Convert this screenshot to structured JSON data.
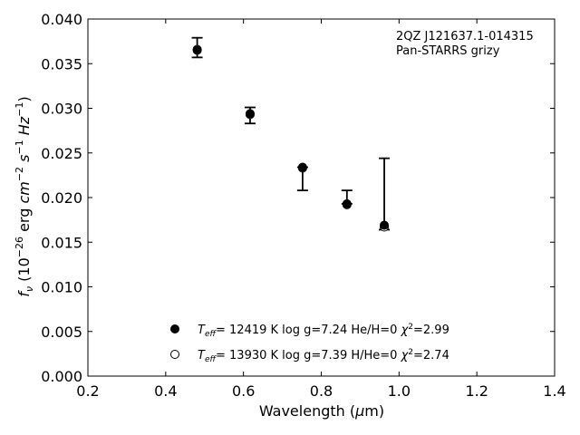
{
  "chart_data": {
    "type": "scatter",
    "xlabel": "Wavelength (μm)",
    "ylabel": "f_ν (10⁻²⁶ erg cm⁻² s⁻¹ Hz⁻¹)",
    "xlim": [
      0.2,
      1.4
    ],
    "ylim": [
      0.0,
      0.04
    ],
    "xticks": [
      "0.2",
      "0.4",
      "0.6",
      "0.8",
      "1.0",
      "1.2",
      "1.4"
    ],
    "yticks": [
      "0.000",
      "0.005",
      "0.010",
      "0.015",
      "0.020",
      "0.025",
      "0.030",
      "0.035",
      "0.040"
    ],
    "annotation": [
      "2QZ J121637.1-014315",
      "Pan-STARRS grizy"
    ],
    "grid": false,
    "legend_position": "bottom-center",
    "observed": {
      "x": [
        0.481,
        0.617,
        0.752,
        0.866,
        0.962
      ],
      "y": [
        0.0368,
        0.0292,
        0.0231,
        0.0193,
        0.0168
      ],
      "yerr_low": [
        0.0011,
        0.0009,
        0.0023,
        0.0,
        0.0004
      ],
      "yerr_high": [
        0.0011,
        0.0009,
        0.0003,
        0.0015,
        0.0076
      ]
    },
    "series": [
      {
        "name": "T_eff= 12419 K  log g=7.24  He/H=0  χ²=2.99",
        "marker": "filled-circle",
        "x": [
          0.481,
          0.617,
          0.752,
          0.866,
          0.962
        ],
        "y": [
          0.0365,
          0.0294,
          0.0234,
          0.0193,
          0.0169
        ]
      },
      {
        "name": "T_eff= 13930 K  log g=7.39  H/He=0  χ²=2.74",
        "marker": "open-circle",
        "x": [
          0.481,
          0.617,
          0.752,
          0.866,
          0.962
        ],
        "y": [
          0.0366,
          0.0293,
          0.0233,
          0.0192,
          0.0167
        ]
      }
    ]
  }
}
